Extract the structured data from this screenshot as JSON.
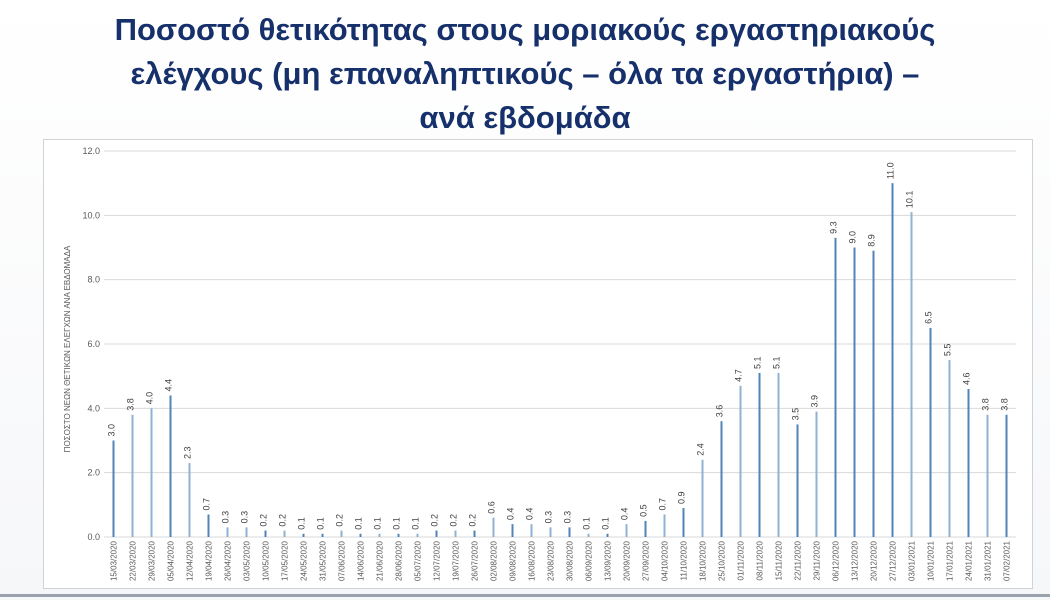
{
  "slide": {
    "title_lines": [
      "Ποσοστό θετικότητας στους μοριακούς εργαστηριακούς",
      "ελέγχους (μη επαναληπτικούς – όλα τα εργαστήρια) –",
      "ανά εβδομάδα"
    ]
  },
  "colors": {
    "title": "#16306b",
    "bar": "#4f86b6",
    "bar_light": "#8fb2d2",
    "grid": "#d9d9d9",
    "axis_text": "#595959"
  },
  "chart_data": {
    "type": "bar",
    "title": "",
    "xlabel": "",
    "ylabel": "ΠΟΣΟΣΤΟ ΝΕΩΝ ΘΕΤΙΚΩΝ ΕΛΕΓΧΩΝ ΑΝΑ ΕΒΔΟΜΑΔΑ",
    "ylim": [
      0,
      12
    ],
    "yticks": [
      "0.0",
      "2.0",
      "4.0",
      "6.0",
      "8.0",
      "10.0",
      "12.0"
    ],
    "grid": true,
    "categories": [
      "15/03/2020",
      "22/03/2020",
      "29/03/2020",
      "05/04/2020",
      "12/04/2020",
      "19/04/2020",
      "26/04/2020",
      "03/05/2020",
      "10/05/2020",
      "17/05/2020",
      "24/05/2020",
      "31/05/2020",
      "07/06/2020",
      "14/06/2020",
      "21/06/2020",
      "28/06/2020",
      "05/07/2020",
      "12/07/2020",
      "19/07/2020",
      "26/07/2020",
      "02/08/2020",
      "09/08/2020",
      "16/08/2020",
      "23/08/2020",
      "30/08/2020",
      "06/09/2020",
      "13/09/2020",
      "20/09/2020",
      "27/09/2020",
      "04/10/2020",
      "11/10/2020",
      "18/10/2020",
      "25/10/2020",
      "01/11/2020",
      "08/11/2020",
      "15/11/2020",
      "22/11/2020",
      "29/11/2020",
      "06/12/2020",
      "13/12/2020",
      "20/12/2020",
      "27/12/2020",
      "03/01/2021",
      "10/01/2021",
      "17/01/2021",
      "24/01/2021",
      "31/01/2021",
      "07/02/2021"
    ],
    "values": [
      3.0,
      3.8,
      4.0,
      4.4,
      2.3,
      0.7,
      0.3,
      0.3,
      0.2,
      0.2,
      0.1,
      0.1,
      0.2,
      0.1,
      0.1,
      0.1,
      0.1,
      0.2,
      0.2,
      0.2,
      0.6,
      0.4,
      0.4,
      0.3,
      0.3,
      0.1,
      0.1,
      0.4,
      0.5,
      0.7,
      0.9,
      2.4,
      3.6,
      4.7,
      5.1,
      5.1,
      3.5,
      3.9,
      9.3,
      9.0,
      8.9,
      11.0,
      10.1,
      6.5,
      5.5,
      4.6,
      3.8,
      3.8
    ],
    "data_labels": [
      "3.0",
      "3.8",
      "4.0",
      "4.4",
      "2.3",
      "0.7",
      "0.3",
      "0.3",
      "0.2",
      "0.2",
      "0.1",
      "0.1",
      "0.2",
      "0.1",
      "0.1",
      "0.1",
      "0.1",
      "0.2",
      "0.2",
      "0.2",
      "0.6",
      "0.4",
      "0.4",
      "0.3",
      "0.3",
      "0.1",
      "0.1",
      "0.4",
      "0.5",
      "0.7",
      "0.9",
      "2.4",
      "3.6",
      "4.7",
      "5.1",
      "5.1",
      "3.5",
      "3.9",
      "9.3",
      "9.0",
      "8.9",
      "11.0",
      "10.1",
      "6.5",
      "5.5",
      "4.6",
      "3.8",
      "3.8"
    ],
    "light_bars": [
      1,
      2,
      4,
      6,
      7,
      9,
      12,
      14,
      16,
      18,
      20,
      22,
      23,
      25,
      27,
      29,
      31,
      33,
      35,
      37,
      42,
      44,
      46
    ]
  }
}
